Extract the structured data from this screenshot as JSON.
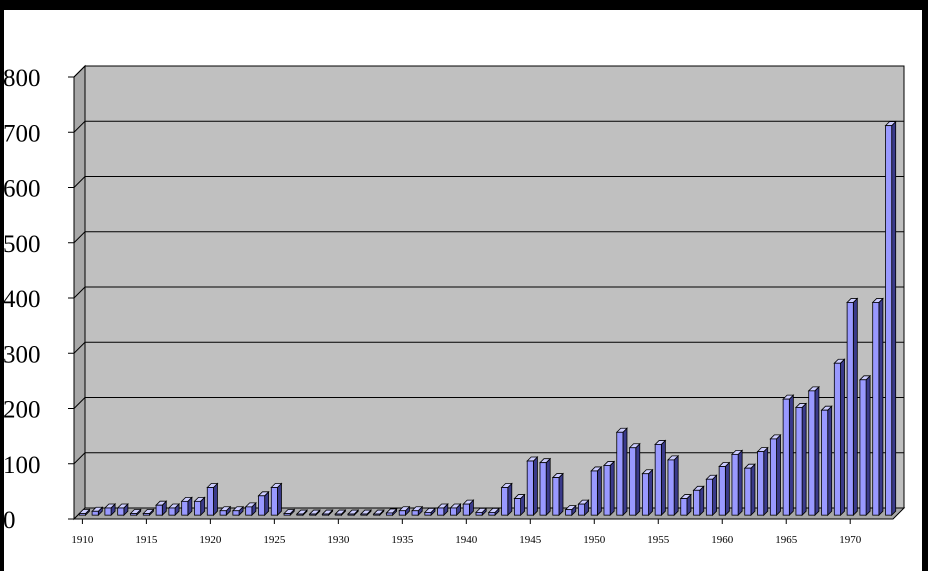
{
  "chart_data": {
    "type": "bar",
    "title": "",
    "xlabel": "",
    "ylabel": "",
    "ylim": [
      0,
      800
    ],
    "yticks": [
      "0",
      "100",
      "200",
      "300",
      "400",
      "500",
      "600",
      "700",
      "800"
    ],
    "xticks": [
      "1910",
      "1915",
      "1920",
      "1925",
      "1930",
      "1935",
      "1940",
      "1945",
      "1950",
      "1955",
      "1960",
      "1965",
      "1970"
    ],
    "grid": true,
    "legend": "none",
    "style": "3d-column",
    "colors": {
      "bar_front": "#9999ff",
      "bar_side": "#3a3a8a",
      "bar_top": "#ccccff",
      "plot_wall": "#c0c0c0",
      "gridline": "#000000"
    },
    "x": [
      1910,
      1911,
      1912,
      1913,
      1914,
      1915,
      1916,
      1917,
      1918,
      1919,
      1920,
      1921,
      1922,
      1923,
      1924,
      1925,
      1926,
      1927,
      1928,
      1929,
      1930,
      1931,
      1932,
      1933,
      1934,
      1935,
      1936,
      1937,
      1938,
      1939,
      1940,
      1941,
      1942,
      1943,
      1944,
      1945,
      1946,
      1947,
      1948,
      1949,
      1950,
      1951,
      1952,
      1953,
      1954,
      1955,
      1956,
      1957,
      1958,
      1959,
      1960,
      1961,
      1962,
      1963,
      1964,
      1965,
      1966,
      1967,
      1968,
      1969,
      1970,
      1971,
      1972,
      1973
    ],
    "values": [
      3,
      7,
      13,
      13,
      3,
      3,
      18,
      13,
      25,
      25,
      50,
      8,
      8,
      15,
      35,
      50,
      3,
      2,
      2,
      2,
      2,
      2,
      2,
      2,
      4,
      8,
      8,
      5,
      13,
      13,
      20,
      5,
      5,
      50,
      30,
      98,
      95,
      68,
      10,
      20,
      80,
      90,
      150,
      122,
      75,
      128,
      100,
      30,
      45,
      65,
      88,
      110,
      85,
      115,
      138,
      210,
      195,
      225,
      190,
      275,
      385,
      245,
      385,
      705
    ]
  }
}
